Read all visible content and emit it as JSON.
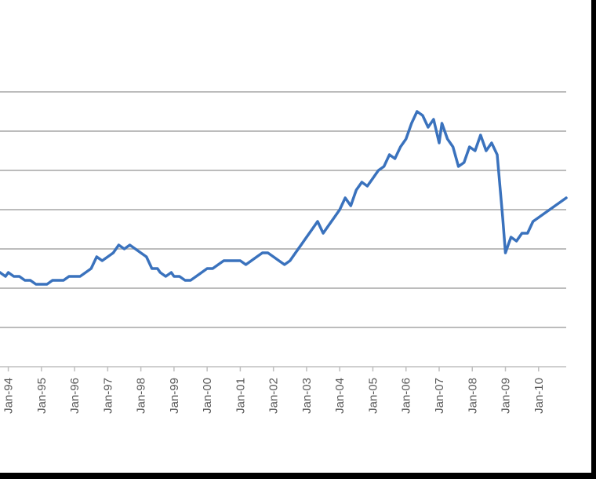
{
  "chart_data": {
    "type": "line",
    "title": "",
    "xlabel": "",
    "ylabel": "",
    "grid": true,
    "legend": "none",
    "x_tick_labels": [
      "Jan-94",
      "Jan-95",
      "Jan-96",
      "Jan-97",
      "Jan-98",
      "Jan-99",
      "Jan-00",
      "Jan-01",
      "Jan-02",
      "Jan-03",
      "Jan-04",
      "Jan-05",
      "Jan-06",
      "Jan-07",
      "Jan-08",
      "Jan-09",
      "Jan-10"
    ],
    "y_axis_labels_visible": false,
    "ylim": [
      0,
      7
    ],
    "xlim": [
      "1993-10",
      "2010-11"
    ],
    "colors": {
      "line": "#3a72bd",
      "grid": "#a6a6a6",
      "axis": "#bfbfbf"
    },
    "series": [
      {
        "x": [
          "1993-10",
          "1993-12",
          "1994-01",
          "1994-03",
          "1994-05",
          "1994-07",
          "1994-09",
          "1994-11",
          "1995-01",
          "1995-03",
          "1995-05",
          "1995-07",
          "1995-09",
          "1995-11",
          "1996-01",
          "1996-03",
          "1996-05",
          "1996-07",
          "1996-09",
          "1996-11",
          "1997-01",
          "1997-03",
          "1997-05",
          "1997-07",
          "1997-09",
          "1997-11",
          "1998-01",
          "1998-03",
          "1998-05",
          "1998-07",
          "1998-08",
          "1998-10",
          "1998-12",
          "1999-01",
          "1999-03",
          "1999-05",
          "1999-07",
          "1999-09",
          "1999-11",
          "2000-01",
          "2000-03",
          "2000-05",
          "2000-07",
          "2000-09",
          "2000-11",
          "2001-01",
          "2001-03",
          "2001-05",
          "2001-07",
          "2001-09",
          "2001-11",
          "2002-01",
          "2002-03",
          "2002-05",
          "2002-07",
          "2002-09",
          "2002-11",
          "2003-01",
          "2003-03",
          "2003-05",
          "2003-07",
          "2003-09",
          "2003-11",
          "2004-01",
          "2004-03",
          "2004-05",
          "2004-07",
          "2004-09",
          "2004-11",
          "2005-01",
          "2005-03",
          "2005-05",
          "2005-07",
          "2005-09",
          "2005-11",
          "2006-01",
          "2006-03",
          "2006-05",
          "2006-07",
          "2006-09",
          "2006-11",
          "2007-01",
          "2007-02",
          "2007-04",
          "2007-06",
          "2007-08",
          "2007-10",
          "2007-12",
          "2008-02",
          "2008-04",
          "2008-06",
          "2008-08",
          "2008-10",
          "2008-12",
          "2009-01",
          "2009-02",
          "2009-03",
          "2009-05",
          "2009-07",
          "2009-09",
          "2009-11",
          "2010-01",
          "2010-03",
          "2010-05",
          "2010-07",
          "2010-09",
          "2010-11"
        ],
        "y": [
          2.4,
          2.3,
          2.4,
          2.3,
          2.3,
          2.2,
          2.2,
          2.1,
          2.1,
          2.1,
          2.2,
          2.2,
          2.2,
          2.3,
          2.3,
          2.3,
          2.4,
          2.5,
          2.8,
          2.7,
          2.8,
          2.9,
          3.1,
          3.0,
          3.1,
          3.0,
          2.9,
          2.8,
          2.5,
          2.5,
          2.4,
          2.3,
          2.4,
          2.3,
          2.3,
          2.2,
          2.2,
          2.3,
          2.4,
          2.5,
          2.5,
          2.6,
          2.7,
          2.7,
          2.7,
          2.7,
          2.6,
          2.7,
          2.8,
          2.9,
          2.9,
          2.8,
          2.7,
          2.6,
          2.7,
          2.9,
          3.1,
          3.3,
          3.5,
          3.7,
          3.4,
          3.6,
          3.8,
          4.0,
          4.3,
          4.1,
          4.5,
          4.7,
          4.6,
          4.8,
          5.0,
          5.1,
          5.4,
          5.3,
          5.6,
          5.8,
          6.2,
          6.5,
          6.4,
          6.1,
          6.3,
          5.7,
          6.2,
          5.8,
          5.6,
          5.1,
          5.2,
          5.6,
          5.5,
          5.9,
          5.5,
          5.7,
          5.4,
          3.8,
          2.9,
          3.1,
          3.3,
          3.2,
          3.4,
          3.4,
          3.7,
          3.8,
          3.9,
          4.0,
          4.1,
          4.2,
          4.3
        ]
      }
    ]
  }
}
